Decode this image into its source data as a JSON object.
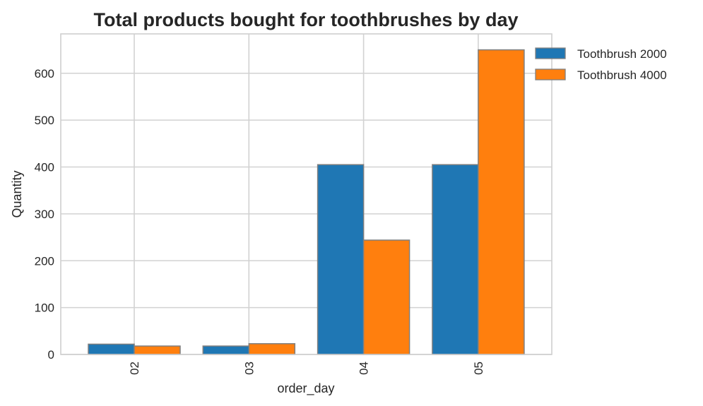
{
  "chart_data": {
    "type": "bar",
    "title": "Total products bought for toothbrushes by day",
    "xlabel": "order_day",
    "ylabel": "Quantity",
    "categories": [
      "02",
      "03",
      "04",
      "05"
    ],
    "series": [
      {
        "name": "Toothbrush 2000",
        "color": "#1f77b4",
        "values": [
          22,
          18,
          405,
          405
        ]
      },
      {
        "name": "Toothbrush 4000",
        "color": "#ff7f0e",
        "values": [
          18,
          23,
          244,
          650
        ]
      }
    ],
    "ylim": [
      0,
      684
    ],
    "yticks": [
      0,
      100,
      200,
      300,
      400,
      500,
      600
    ],
    "grid": true,
    "legend_position": "outside-top-right",
    "xtick_rotation": "vertical"
  }
}
